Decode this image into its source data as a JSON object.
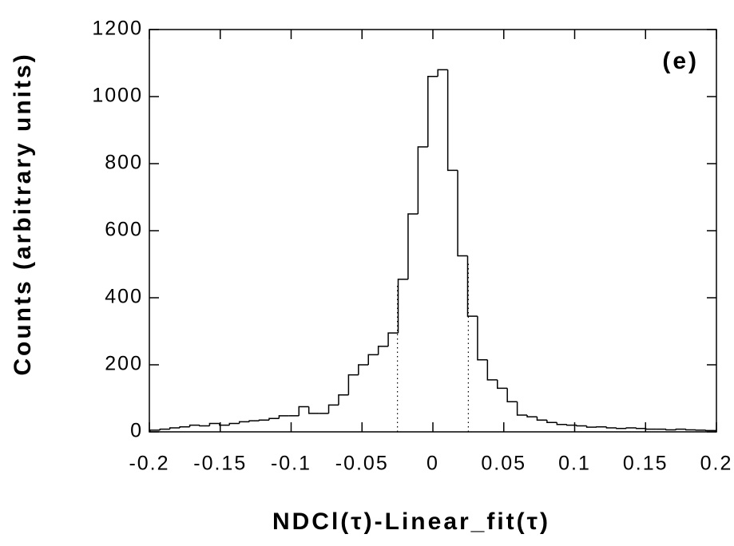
{
  "chart_data": {
    "type": "histogram",
    "annotation": "(e)",
    "x_label": "NDCl(τ)-Linear_fit(τ)",
    "y_label": "Counts  (arbitrary  units)",
    "color": "#000000",
    "xlim": [
      -0.2,
      0.2
    ],
    "ylim": [
      0,
      1200
    ],
    "xticks": [
      -0.2,
      -0.15,
      -0.1,
      -0.05,
      0,
      0.05,
      0.1,
      0.15,
      0.2
    ],
    "yticks": [
      0,
      200,
      400,
      600,
      800,
      1000,
      1200
    ],
    "vlines": [
      -0.025,
      0.025
    ],
    "bins": [
      -0.1995,
      -0.1925,
      -0.1855,
      -0.1785,
      -0.1715,
      -0.1645,
      -0.1575,
      -0.1505,
      -0.1435,
      -0.1365,
      -0.1295,
      -0.1225,
      -0.1155,
      -0.1085,
      -0.1015,
      -0.0945,
      -0.0875,
      -0.0805,
      -0.0735,
      -0.0665,
      -0.0595,
      -0.0525,
      -0.0455,
      -0.0385,
      -0.0315,
      -0.0245,
      -0.0175,
      -0.0105,
      -0.0035,
      0.0035,
      0.0105,
      0.0175,
      0.0245,
      0.0315,
      0.0385,
      0.0455,
      0.0525,
      0.0595,
      0.0665,
      0.0735,
      0.0805,
      0.0875,
      0.0945,
      0.1015,
      0.1085,
      0.1155,
      0.1225,
      0.1295,
      0.1365,
      0.1435,
      0.1505,
      0.1575,
      0.1645,
      0.1715,
      0.1785,
      0.1855,
      0.1925,
      0.1995
    ],
    "values": [
      5,
      8,
      12,
      15,
      20,
      18,
      25,
      20,
      25,
      30,
      33,
      35,
      40,
      48,
      48,
      75,
      55,
      55,
      80,
      110,
      170,
      200,
      230,
      255,
      295,
      455,
      650,
      850,
      1060,
      1080,
      780,
      525,
      345,
      215,
      155,
      130,
      90,
      50,
      45,
      35,
      28,
      22,
      20,
      18,
      14,
      15,
      12,
      10,
      12,
      10,
      8,
      8,
      6,
      8,
      6,
      5,
      4
    ]
  }
}
